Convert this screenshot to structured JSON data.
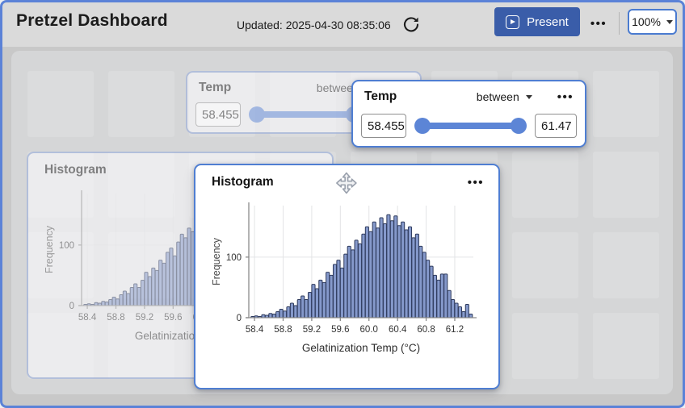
{
  "header": {
    "title": "Pretzel Dashboard",
    "updated_label": "Updated: 2025-04-30 08:35:06",
    "present_label": "Present",
    "menu_dots": "•••",
    "zoom_value": "100%"
  },
  "filter_card": {
    "title": "Temp",
    "operator": "between",
    "min_value": "58.455",
    "max_value": "61.47",
    "menu_dots": "•••"
  },
  "histogram_card": {
    "title": "Histogram",
    "menu_dots": "•••"
  },
  "colors": {
    "window_border": "#5b82d7",
    "header_bg": "#dadada",
    "content_bg": "#c8c8c8",
    "canvas_bg": "#d5d6d7",
    "tile_bg": "#dbdcdd",
    "present_button_bg": "#3a5da9",
    "active_card_border": "#4f7ed2",
    "slider_blue": "#5c85d6",
    "bar_fill": "#8599cb",
    "bar_stroke": "#2e3a5c",
    "gridline": "#e3e4e6",
    "axis": "#8a8a8a"
  },
  "chart_data": {
    "type": "bar",
    "subtype": "histogram",
    "title": "Histogram",
    "xlabel": "Gelatinization Temp (°C)",
    "ylabel": "Frequency",
    "bin_start": 58.35,
    "bin_width": 0.05,
    "frequencies": [
      2,
      3,
      2,
      5,
      4,
      7,
      6,
      10,
      14,
      11,
      18,
      24,
      20,
      30,
      36,
      30,
      42,
      55,
      48,
      62,
      58,
      75,
      70,
      88,
      95,
      82,
      105,
      118,
      112,
      128,
      122,
      138,
      150,
      142,
      158,
      148,
      165,
      155,
      170,
      160,
      168,
      152,
      158,
      145,
      150,
      132,
      138,
      118,
      108,
      95,
      85,
      70,
      62,
      72,
      72,
      45,
      30,
      24,
      18,
      10,
      22,
      6
    ],
    "xticks": [
      58.4,
      58.8,
      59.2,
      59.6,
      60.0,
      60.4,
      60.8,
      61.2
    ],
    "yticks": [
      0,
      100
    ],
    "xlim": [
      58.32,
      61.46
    ],
    "ylim": [
      0,
      185
    ],
    "grid": true,
    "legend": false
  }
}
